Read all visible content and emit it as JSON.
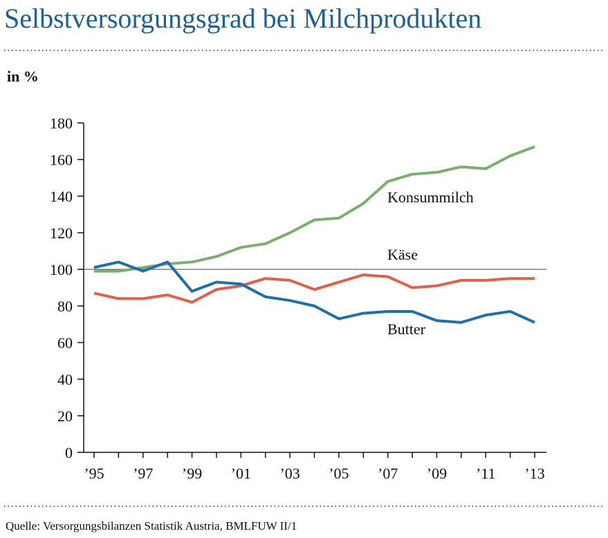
{
  "chart_data": {
    "type": "line",
    "title": "Selbstversorgungsgrad bei Milchprodukten",
    "y_label": "in %",
    "source": "Quelle: Versorgungsbilanzen Statistik Austria, BMLFUW II/1",
    "categories": [
      "’95",
      null,
      "’97",
      null,
      "’99",
      null,
      "’01",
      null,
      "’03",
      null,
      "’05",
      null,
      "’07",
      null,
      "’09",
      null,
      "’11",
      null,
      "’13"
    ],
    "series": [
      {
        "name": "Konsummilch",
        "color": "#7aaf6e",
        "values": [
          99,
          99,
          101,
          103,
          104,
          107,
          112,
          114,
          120,
          127,
          128,
          136,
          148,
          152,
          153,
          156,
          155,
          162,
          167
        ]
      },
      {
        "name": "Käse",
        "color": "#e0604a",
        "values": [
          87,
          84,
          84,
          86,
          82,
          89,
          91,
          95,
          94,
          89,
          93,
          97,
          96,
          90,
          91,
          94,
          94,
          95,
          95
        ]
      },
      {
        "name": "Butter",
        "color": "#1f6fa8",
        "values": [
          101,
          104,
          99,
          104,
          88,
          93,
          92,
          85,
          83,
          80,
          73,
          76,
          77,
          77,
          72,
          71,
          75,
          77,
          71
        ]
      }
    ],
    "ylim": [
      0,
      180
    ],
    "yticks": [
      0,
      20,
      40,
      60,
      80,
      100,
      120,
      140,
      160,
      180
    ],
    "reference_line": 100
  }
}
